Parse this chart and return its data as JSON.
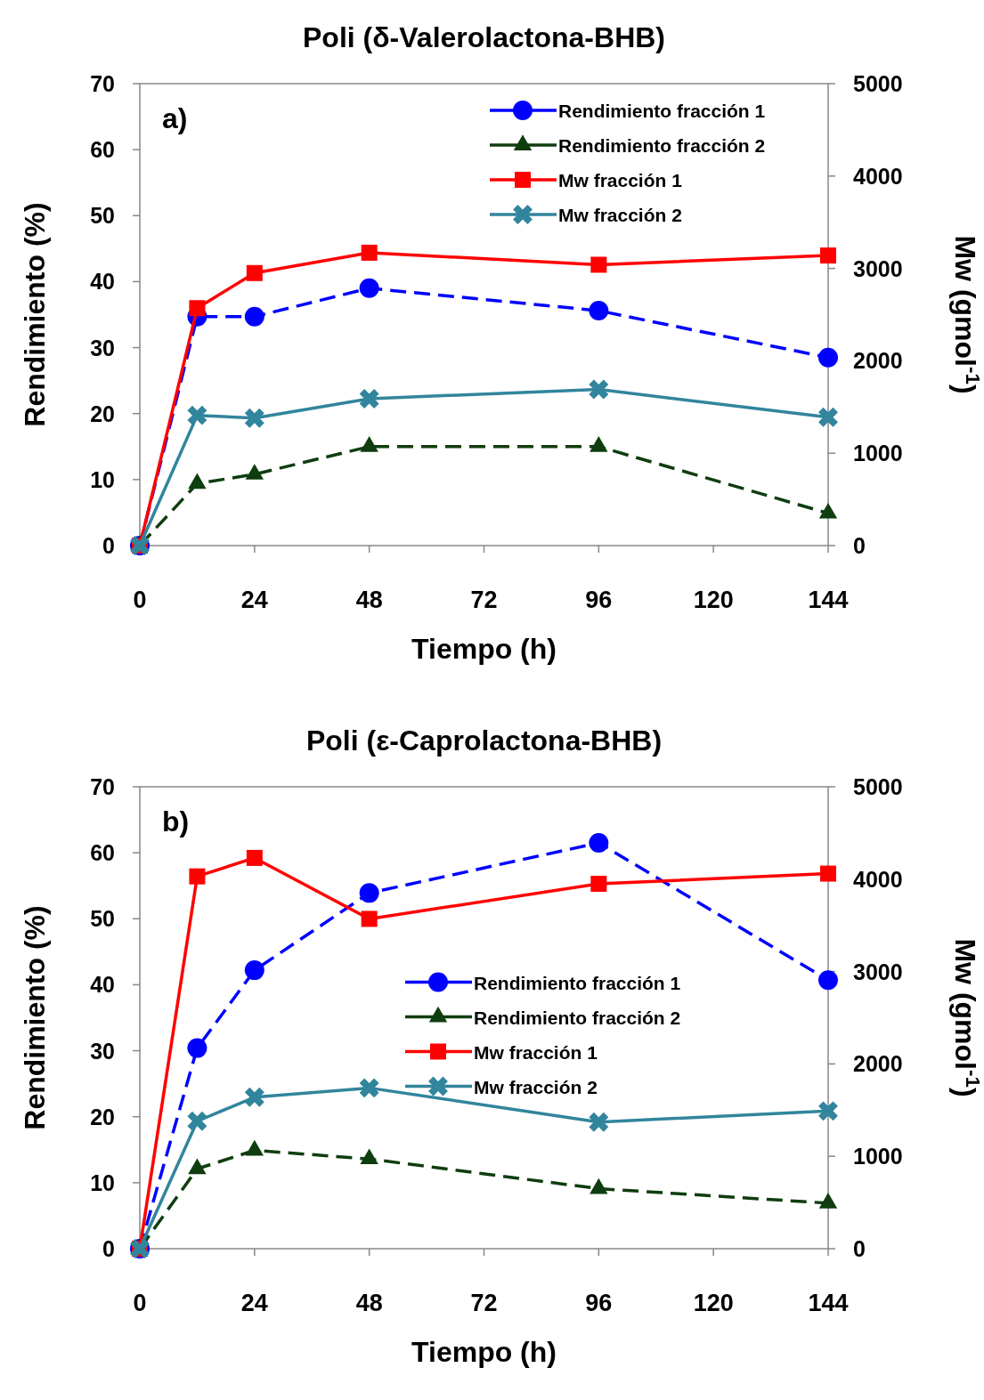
{
  "chart_data": [
    {
      "type": "line",
      "title": "Poli (δ-Valerolactona-BHB)",
      "xlabel": "Tiempo (h)",
      "ylabel": "Rendimiento (%)",
      "y2label": "Mw (gmol$^{-1}$)",
      "annotations": [
        "a)"
      ],
      "xlim": [
        0,
        144
      ],
      "xticks": [
        0,
        24,
        48,
        72,
        96,
        120,
        144
      ],
      "ylim": [
        0,
        70
      ],
      "yticks": [
        0,
        10,
        20,
        30,
        40,
        50,
        60,
        70
      ],
      "y2lim": [
        0,
        5000
      ],
      "y2ticks": [
        0,
        1000,
        2000,
        3000,
        4000,
        5000
      ],
      "legend": "top right",
      "x": [
        0,
        12,
        24,
        48,
        96,
        144
      ],
      "series": [
        {
          "name": "Rendimiento fracción 1",
          "color": "#0000ff",
          "marker": "circle",
          "line_style": "dashed",
          "values": [
            0,
            34.7,
            34.7,
            39.0,
            35.6,
            28.5
          ]
        },
        {
          "name": "Rendimiento fracción 2",
          "color": "#0f3d0f",
          "marker": "triangle",
          "line_style": "dashed",
          "values": [
            0,
            9.4,
            10.8,
            15.0,
            15.0,
            4.9
          ]
        },
        {
          "name": "Mw fracción 1",
          "color": "#ff0000",
          "marker": "square",
          "line_style": "solid",
          "axis": "y2",
          "values": [
            0,
            2570,
            2950,
            3170,
            3040,
            3140
          ]
        },
        {
          "name": "Mw fracción 2",
          "color": "#31859c",
          "marker": "cross",
          "line_style": "solid",
          "axis": "y2",
          "values": [
            0,
            1410,
            1380,
            1590,
            1690,
            1390
          ]
        }
      ]
    },
    {
      "type": "line",
      "title": "Poli (ε-Caprolactona-BHB)",
      "xlabel": "Tiempo (h)",
      "ylabel": "Rendimiento (%)",
      "y2label": "Mw (gmol$^{-1}$)",
      "annotations": [
        "b)"
      ],
      "xlim": [
        0,
        144
      ],
      "xticks": [
        0,
        24,
        48,
        72,
        96,
        120,
        144
      ],
      "ylim": [
        0,
        70
      ],
      "yticks": [
        0,
        10,
        20,
        30,
        40,
        50,
        60,
        70
      ],
      "y2lim": [
        0,
        5000
      ],
      "y2ticks": [
        0,
        1000,
        2000,
        3000,
        4000,
        5000
      ],
      "legend": "right",
      "x": [
        0,
        12,
        24,
        48,
        96,
        144
      ],
      "series": [
        {
          "name": "Rendimiento fracción 1",
          "color": "#0000ff",
          "marker": "circle",
          "line_style": "dashed",
          "values": [
            0,
            30.4,
            42.2,
            53.9,
            61.5,
            40.7
          ]
        },
        {
          "name": "Rendimiento fracción 2",
          "color": "#0f3d0f",
          "marker": "triangle",
          "line_style": "dashed",
          "values": [
            0,
            12.1,
            14.9,
            13.6,
            9.1,
            6.9
          ]
        },
        {
          "name": "Mw fracción 1",
          "color": "#ff0000",
          "marker": "square",
          "line_style": "solid",
          "axis": "y2",
          "values": [
            0,
            4030,
            4230,
            3570,
            3950,
            4060
          ]
        },
        {
          "name": "Mw fracción 2",
          "color": "#31859c",
          "marker": "cross",
          "line_style": "solid",
          "axis": "y2",
          "values": [
            0,
            1380,
            1640,
            1740,
            1370,
            1490
          ]
        }
      ]
    }
  ]
}
